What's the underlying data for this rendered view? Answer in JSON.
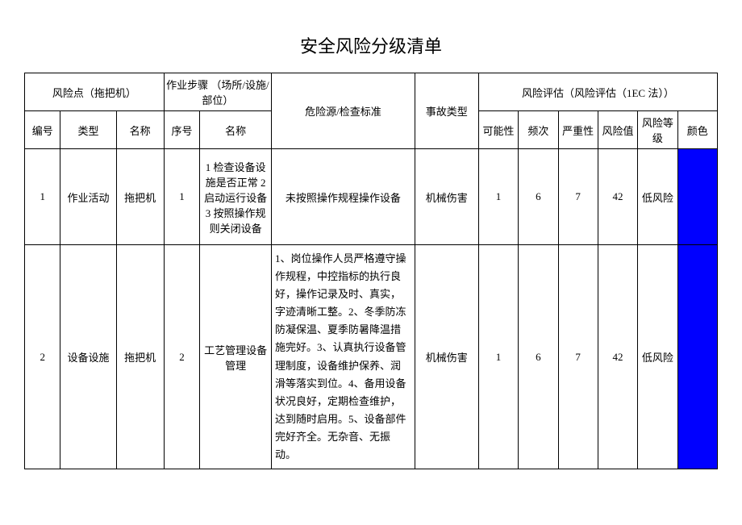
{
  "title": "安全风险分级清单",
  "header": {
    "riskPoint": "风险点（拖把机）",
    "operationStep": "作业步骤\n（场所/设施/部位）",
    "hazardSource": "危险源/检查标准",
    "accidentType": "事故类型",
    "riskAssess": "风险评估（风险评估（1EC 法））",
    "number": "编号",
    "type": "类型",
    "name": "名称",
    "seq": "序号",
    "stepName": "名称",
    "possibility": "可能性",
    "frequency": "频次",
    "severity": "严重性",
    "riskValue": "风险值",
    "riskLevel": "风险等级",
    "color": "颜色"
  },
  "rows": [
    {
      "number": "1",
      "type": "作业活动",
      "name": "拖把机",
      "seq": "1",
      "stepName": "1 检查设备设施是否正常 2 启动运行设备 3 按照操作规则关闭设备",
      "hazard": "未按照操作规程操作设备",
      "accident": "机械伤害",
      "possibility": "1",
      "frequency": "6",
      "severity": "7",
      "riskValue": "42",
      "riskLevel": "低风险",
      "color": "#0000ff"
    },
    {
      "number": "2",
      "type": "设备设施",
      "name": "拖把机",
      "seq": "2",
      "stepName": "工艺管理设备管理",
      "hazard": "1、岗位操作人员严格遵守操作规程，中控指标的执行良好，操作记录及时、真实，字迹清晰工整。2、冬季防冻防凝保温、夏季防暑降温措施完好。3、认真执行设备管理制度，设备维护保养、润滑等落实到位。4、备用设备状况良好，定期检查维护，达到随时启用。5、设备部件完好齐全。无杂音、无振动。",
      "accident": "机械伤害",
      "possibility": "1",
      "frequency": "6",
      "severity": "7",
      "riskValue": "42",
      "riskLevel": "低风险",
      "color": "#0000ff"
    }
  ],
  "style": {
    "background_color": "#ffffff",
    "border_color": "#000000",
    "text_color": "#000000",
    "title_fontsize": 22,
    "body_fontsize": 13
  }
}
